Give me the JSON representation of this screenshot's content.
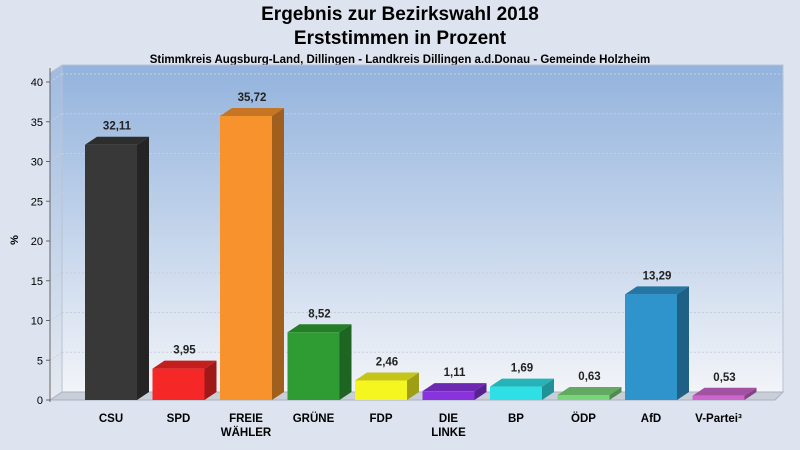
{
  "chart_data": {
    "type": "bar",
    "title": "Ergebnis zur Bezirkswahl 2018",
    "title_line2": "Erststimmen in Prozent",
    "subtitle": "Stimmkreis Augsburg-Land, Dillingen - Landkreis Dillingen a.d.Donau - Gemeinde Holzheim",
    "ylabel": "%",
    "xlabel": "",
    "ylim": [
      0,
      40
    ],
    "yticks": [
      0,
      5,
      10,
      15,
      20,
      25,
      30,
      35,
      40
    ],
    "grid": true,
    "categories": [
      [
        "CSU"
      ],
      [
        "SPD"
      ],
      [
        "FREIE",
        "WÄHLER"
      ],
      [
        "GRÜNE"
      ],
      [
        "FDP"
      ],
      [
        "DIE",
        "LINKE"
      ],
      [
        "BP"
      ],
      [
        "ÖDP"
      ],
      [
        "AfD"
      ],
      [
        "V-Partei³"
      ]
    ],
    "values": [
      32.11,
      3.95,
      35.72,
      8.52,
      2.46,
      1.11,
      1.69,
      0.63,
      13.29,
      0.53
    ],
    "value_labels": [
      "32,11",
      "3,95",
      "35,72",
      "8,52",
      "2,46",
      "1,11",
      "1,69",
      "0,63",
      "13,29",
      "0,53"
    ],
    "colors": [
      "#383838",
      "#f52727",
      "#f7922d",
      "#2e9c32",
      "#f5f520",
      "#8833dd",
      "#2ee0e6",
      "#7ad47a",
      "#2f94cc",
      "#cc66cc"
    ]
  }
}
